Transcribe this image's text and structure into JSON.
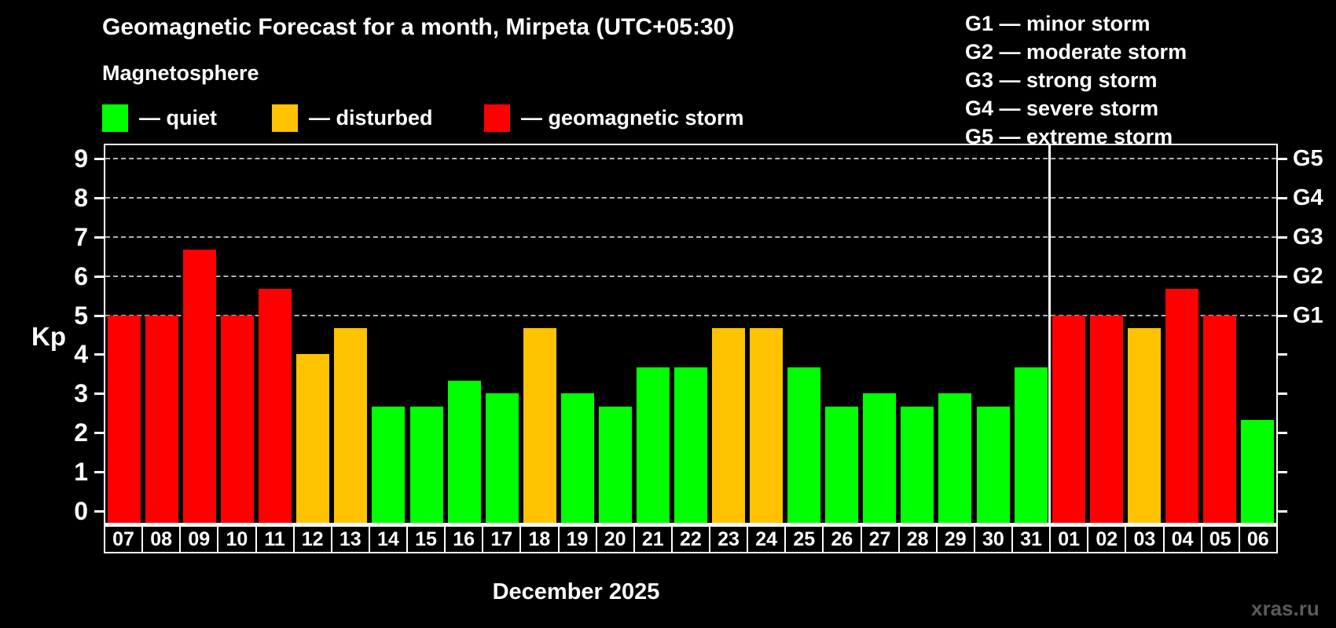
{
  "title": "Geomagnetic Forecast for a month, Mirpeta (UTC+05:30)",
  "subtitle": "Magnetosphere",
  "kp_axis_label": "Kp",
  "month_label": "December 2025",
  "watermark": "xras.ru",
  "colors": {
    "background": "#000000",
    "quiet": "#00ff00",
    "disturbed": "#ffc200",
    "storm": "#ff0000",
    "axis": "#ffffff",
    "grid": "#b3b3b3",
    "watermark": "#5a5a5a"
  },
  "legend": {
    "items": [
      {
        "status": "quiet",
        "label": "— quiet"
      },
      {
        "status": "disturbed",
        "label": "— disturbed"
      },
      {
        "status": "storm",
        "label": "— geomagnetic storm"
      }
    ]
  },
  "g_legend": {
    "items": [
      "G1 — minor storm",
      "G2 — moderate storm",
      "G3 — strong storm",
      "G4 — severe storm",
      "G5 — extreme storm"
    ]
  },
  "chart_data": {
    "type": "bar",
    "title": "Geomagnetic Forecast for a month, Mirpeta (UTC+05:30)",
    "xlabel": "December 2025",
    "ylabel": "Kp",
    "ylim": [
      -0.35,
      9.4
    ],
    "yticks": [
      0,
      1,
      2,
      3,
      4,
      5,
      6,
      7,
      8,
      9
    ],
    "gridlines_at": [
      5,
      6,
      7,
      8,
      9
    ],
    "grid": "dashed, only at Kp 5-9",
    "legend_position": "top",
    "right_axis_labels": [
      {
        "kp": 5,
        "label": "G1"
      },
      {
        "kp": 6,
        "label": "G2"
      },
      {
        "kp": 7,
        "label": "G3"
      },
      {
        "kp": 8,
        "label": "G4"
      },
      {
        "kp": 9,
        "label": "G5"
      }
    ],
    "categories": [
      "07",
      "08",
      "09",
      "10",
      "11",
      "12",
      "13",
      "14",
      "15",
      "16",
      "17",
      "18",
      "19",
      "20",
      "21",
      "22",
      "23",
      "24",
      "25",
      "26",
      "27",
      "28",
      "29",
      "30",
      "31",
      "01",
      "02",
      "03",
      "04",
      "05",
      "06"
    ],
    "values": [
      5.0,
      5.0,
      6.67,
      5.0,
      5.67,
      4.0,
      4.67,
      2.67,
      2.67,
      3.33,
      3.0,
      4.67,
      3.0,
      2.67,
      3.67,
      3.67,
      4.67,
      4.67,
      3.67,
      2.67,
      3.0,
      2.67,
      3.0,
      2.67,
      3.67,
      5.0,
      5.0,
      4.67,
      5.67,
      5.0,
      2.33
    ],
    "statuses": [
      "storm",
      "storm",
      "storm",
      "storm",
      "storm",
      "disturbed",
      "disturbed",
      "quiet",
      "quiet",
      "quiet",
      "quiet",
      "disturbed",
      "quiet",
      "quiet",
      "quiet",
      "quiet",
      "disturbed",
      "disturbed",
      "quiet",
      "quiet",
      "quiet",
      "quiet",
      "quiet",
      "quiet",
      "quiet",
      "storm",
      "storm",
      "disturbed",
      "storm",
      "storm",
      "quiet"
    ],
    "thresholds": {
      "disturbed_min": 4,
      "storm_min": 5
    },
    "separator_after_index": 24
  }
}
